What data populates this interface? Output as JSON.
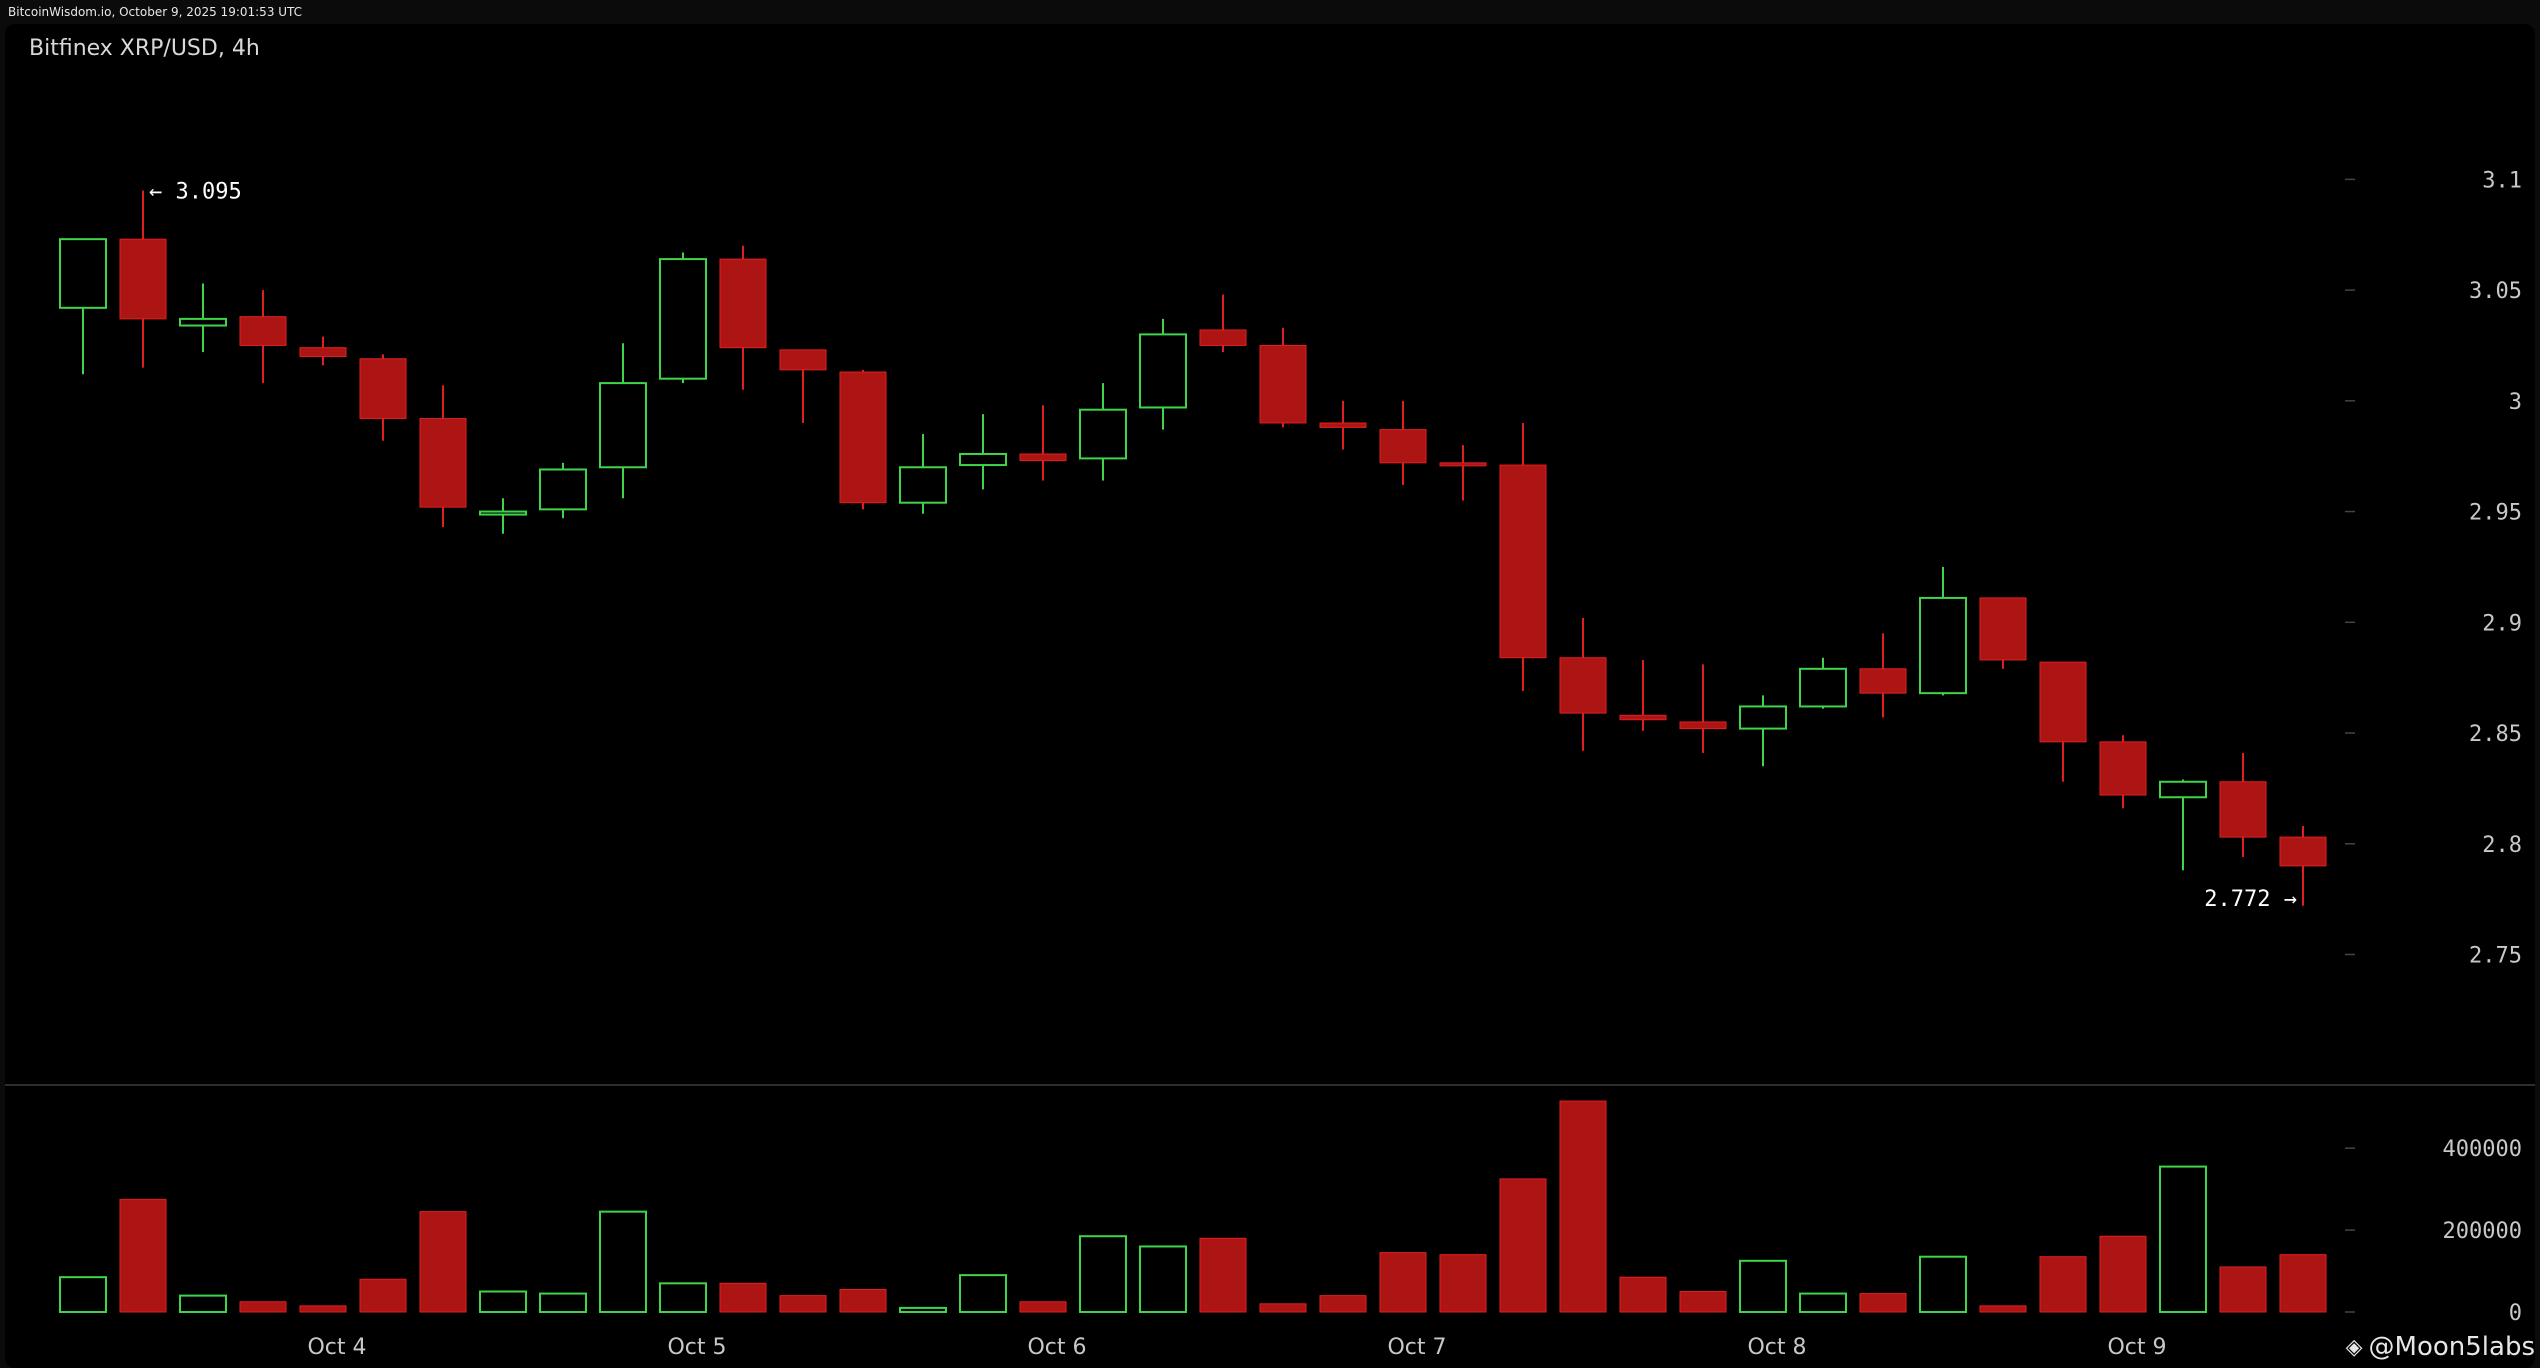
{
  "header": {
    "timestamp": "BitcoinWisdom.io, October 9, 2025 19:01:53 UTC"
  },
  "chart_title": "Bitfinex XRP/USD, 4h",
  "watermark": {
    "icon": "diamond-logo-icon",
    "text": "@Moon5labs"
  },
  "colors": {
    "up": "#3fd44a",
    "down": "#ad1414",
    "down_wick": "#e02020",
    "axis_text": "#c8c8c8",
    "separator": "#2e2e2e"
  },
  "annotations": {
    "high_label": "← 3.095",
    "high_value": 3.095,
    "low_label": "2.772 →",
    "low_value": 2.772
  },
  "chart_data": [
    {
      "type": "candlestick",
      "title": "Bitfinex XRP/USD, 4h",
      "ylim": [
        2.715,
        3.125
      ],
      "y_ticks": [
        3.1,
        3.05,
        3,
        2.95,
        2.9,
        2.85,
        2.8,
        2.75
      ],
      "y_tick_labels": [
        "3.1",
        "3.05",
        "3",
        "2.95",
        "2.9",
        "2.85",
        "2.8",
        "2.75"
      ],
      "x_ticks": [
        {
          "label": "Oct 4",
          "index": 4.5
        },
        {
          "label": "Oct 5",
          "index": 10.5
        },
        {
          "label": "Oct 6",
          "index": 16.5
        },
        {
          "label": "Oct 7",
          "index": 22.5
        },
        {
          "label": "Oct 8",
          "index": 28.5
        },
        {
          "label": "Oct 9",
          "index": 34.5
        }
      ],
      "candles": [
        {
          "o": 3.042,
          "h": 3.073,
          "l": 3.012,
          "c": 3.073
        },
        {
          "o": 3.073,
          "h": 3.095,
          "l": 3.015,
          "c": 3.037
        },
        {
          "o": 3.034,
          "h": 3.053,
          "l": 3.022,
          "c": 3.037
        },
        {
          "o": 3.038,
          "h": 3.05,
          "l": 3.008,
          "c": 3.025
        },
        {
          "o": 3.024,
          "h": 3.029,
          "l": 3.016,
          "c": 3.02
        },
        {
          "o": 3.019,
          "h": 3.021,
          "l": 2.982,
          "c": 2.992
        },
        {
          "o": 2.992,
          "h": 3.007,
          "l": 2.943,
          "c": 2.952
        },
        {
          "o": 2.95,
          "h": 2.956,
          "l": 2.94,
          "c": 2.95
        },
        {
          "o": 2.951,
          "h": 2.972,
          "l": 2.947,
          "c": 2.969
        },
        {
          "o": 2.97,
          "h": 3.026,
          "l": 2.956,
          "c": 3.008
        },
        {
          "o": 3.01,
          "h": 3.067,
          "l": 3.008,
          "c": 3.064
        },
        {
          "o": 3.064,
          "h": 3.07,
          "l": 3.005,
          "c": 3.024
        },
        {
          "o": 3.023,
          "h": 3.023,
          "l": 2.99,
          "c": 3.014
        },
        {
          "o": 3.013,
          "h": 3.014,
          "l": 2.951,
          "c": 2.954
        },
        {
          "o": 2.954,
          "h": 2.985,
          "l": 2.949,
          "c": 2.97
        },
        {
          "o": 2.971,
          "h": 2.994,
          "l": 2.96,
          "c": 2.976
        },
        {
          "o": 2.976,
          "h": 2.998,
          "l": 2.964,
          "c": 2.973
        },
        {
          "o": 2.974,
          "h": 3.008,
          "l": 2.964,
          "c": 2.996
        },
        {
          "o": 2.997,
          "h": 3.037,
          "l": 2.987,
          "c": 3.03
        },
        {
          "o": 3.032,
          "h": 3.048,
          "l": 3.022,
          "c": 3.025
        },
        {
          "o": 3.025,
          "h": 3.033,
          "l": 2.988,
          "c": 2.99
        },
        {
          "o": 2.99,
          "h": 3.0,
          "l": 2.978,
          "c": 2.988
        },
        {
          "o": 2.987,
          "h": 3.0,
          "l": 2.962,
          "c": 2.972
        },
        {
          "o": 2.972,
          "h": 2.98,
          "l": 2.955,
          "c": 2.971
        },
        {
          "o": 2.971,
          "h": 2.99,
          "l": 2.869,
          "c": 2.884
        },
        {
          "o": 2.884,
          "h": 2.902,
          "l": 2.842,
          "c": 2.859
        },
        {
          "o": 2.858,
          "h": 2.883,
          "l": 2.851,
          "c": 2.856
        },
        {
          "o": 2.855,
          "h": 2.881,
          "l": 2.841,
          "c": 2.852
        },
        {
          "o": 2.852,
          "h": 2.867,
          "l": 2.835,
          "c": 2.862
        },
        {
          "o": 2.862,
          "h": 2.884,
          "l": 2.861,
          "c": 2.879
        },
        {
          "o": 2.879,
          "h": 2.895,
          "l": 2.857,
          "c": 2.868
        },
        {
          "o": 2.868,
          "h": 2.925,
          "l": 2.867,
          "c": 2.911
        },
        {
          "o": 2.911,
          "h": 2.911,
          "l": 2.879,
          "c": 2.883
        },
        {
          "o": 2.882,
          "h": 2.882,
          "l": 2.828,
          "c": 2.846
        },
        {
          "o": 2.846,
          "h": 2.849,
          "l": 2.816,
          "c": 2.822
        },
        {
          "o": 2.821,
          "h": 2.829,
          "l": 2.788,
          "c": 2.828
        },
        {
          "o": 2.828,
          "h": 2.841,
          "l": 2.794,
          "c": 2.803
        },
        {
          "o": 2.803,
          "h": 2.808,
          "l": 2.772,
          "c": 2.79
        }
      ]
    },
    {
      "type": "bar",
      "title": "",
      "ylim": [
        0,
        520000
      ],
      "y_ticks": [
        0,
        200000,
        400000
      ],
      "y_tick_labels": [
        "0",
        "200000",
        "400000"
      ],
      "values": [
        85000,
        275000,
        40000,
        25000,
        15000,
        80000,
        245000,
        50000,
        45000,
        245000,
        70000,
        70000,
        40000,
        55000,
        10000,
        90000,
        25000,
        185000,
        160000,
        180000,
        20000,
        40000,
        145000,
        140000,
        325000,
        515000,
        85000,
        50000,
        125000,
        45000,
        45000,
        135000,
        15000,
        135000,
        185000,
        355000,
        110000,
        140000
      ]
    }
  ]
}
